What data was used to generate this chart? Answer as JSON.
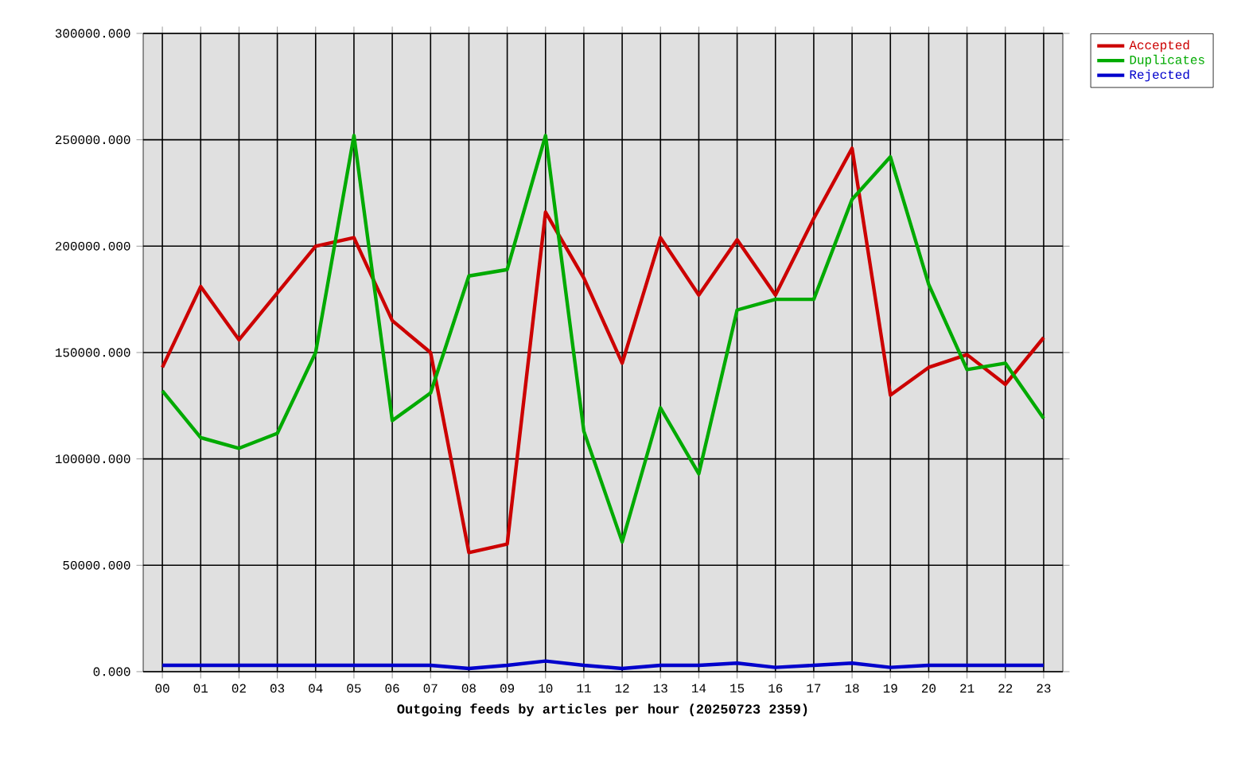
{
  "chart_data": {
    "type": "line",
    "xlabel": "Outgoing feeds by articles per hour (20250723 2359)",
    "categories": [
      "00",
      "01",
      "02",
      "03",
      "04",
      "05",
      "06",
      "07",
      "08",
      "09",
      "10",
      "11",
      "12",
      "13",
      "14",
      "15",
      "16",
      "17",
      "18",
      "19",
      "20",
      "21",
      "22",
      "23"
    ],
    "series": [
      {
        "name": "Accepted",
        "color": "#cc0000",
        "values": [
          143000,
          181000,
          156000,
          178000,
          200000,
          204000,
          165000,
          150000,
          56000,
          60000,
          216000,
          185000,
          145000,
          204000,
          177000,
          203000,
          177000,
          213000,
          246000,
          130000,
          143000,
          149000,
          135000,
          157000
        ]
      },
      {
        "name": "Duplicates",
        "color": "#00aa00",
        "values": [
          132000,
          110000,
          105000,
          112000,
          150000,
          252000,
          118000,
          131000,
          186000,
          189000,
          252000,
          113000,
          61000,
          124000,
          93000,
          170000,
          175000,
          175000,
          222000,
          242000,
          182000,
          142000,
          145000,
          119000
        ]
      },
      {
        "name": "Rejected",
        "color": "#0000cc",
        "values": [
          3000,
          3000,
          3000,
          3000,
          3000,
          3000,
          3000,
          3000,
          1500,
          3000,
          5000,
          3000,
          1500,
          3000,
          3000,
          4000,
          2000,
          3000,
          4000,
          2000,
          3000,
          3000,
          3000,
          3000
        ]
      }
    ],
    "ylim": [
      0,
      300000
    ],
    "yticks": [
      {
        "value": 0,
        "label": "0.000"
      },
      {
        "value": 50000,
        "label": "50000.000"
      },
      {
        "value": 100000,
        "label": "100000.000"
      },
      {
        "value": 150000,
        "label": "150000.000"
      },
      {
        "value": 200000,
        "label": "200000.000"
      },
      {
        "value": 250000,
        "label": "250000.000"
      },
      {
        "value": 300000,
        "label": "300000.000"
      }
    ],
    "grid": true,
    "legend": "top right",
    "line_style": "solid"
  }
}
